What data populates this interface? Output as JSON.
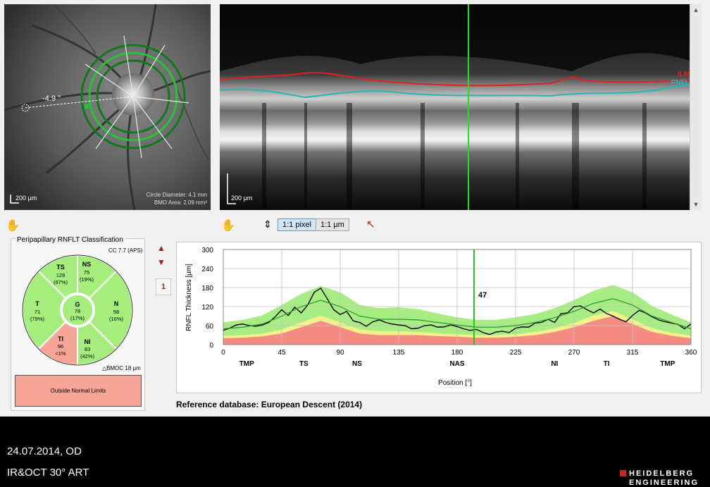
{
  "fundus": {
    "angle_label": "-4.9 °",
    "scale_label": "200 µm",
    "circle_diameter": "Circle Diameter: 4.1 mm",
    "bmo_area": "BMO Area: 2.09 mm²"
  },
  "bscan": {
    "scale_label": "200 µm",
    "layer_ilm": "ILM",
    "layer_rnfl": "RNFL",
    "ilm_color": "#e02020",
    "rnfl_color": "#2ab5b5"
  },
  "toolbar": {
    "btn_1to1_pixel": "1:1 pixel",
    "btn_1to1_um": "1:1 µm"
  },
  "classification": {
    "title": "Peripapillary RNFLT Classification",
    "cc": "CC 7.7 (APS)",
    "bmoc": "BMOC 18 µm",
    "result": "Outside Normal Limits",
    "page_number": "1",
    "sectors": {
      "TS": {
        "name": "TS",
        "value": "128",
        "pct": "(67%)"
      },
      "NS": {
        "name": "NS",
        "value": "75",
        "pct": "(19%)"
      },
      "T": {
        "name": "T",
        "value": "71",
        "pct": "(79%)"
      },
      "G": {
        "name": "G",
        "value": "78",
        "pct": "(17%)"
      },
      "N": {
        "name": "N",
        "value": "58",
        "pct": "(16%)"
      },
      "TI": {
        "name": "TI",
        "value": "96",
        "pct": "<1%"
      },
      "NI": {
        "name": "NI",
        "value": "83",
        "pct": "(42%)"
      }
    },
    "normal_color": "#a5ee7e",
    "outside_color": "#f6a596"
  },
  "chart_data": {
    "type": "line",
    "ylabel": "RNFL Thickness [µm]",
    "xlabel": "Position [°]",
    "xlim": [
      0,
      360
    ],
    "ylim": [
      0,
      300
    ],
    "xticks": [
      0,
      45,
      90,
      135,
      180,
      225,
      270,
      315,
      360
    ],
    "yticks": [
      0,
      60,
      120,
      180,
      240,
      300
    ],
    "sector_labels": [
      {
        "label": "TMP",
        "x": 18
      },
      {
        "label": "TS",
        "x": 62
      },
      {
        "label": "NS",
        "x": 103
      },
      {
        "label": "NAS",
        "x": 180
      },
      {
        "label": "NI",
        "x": 255
      },
      {
        "label": "TI",
        "x": 295
      },
      {
        "label": "TMP",
        "x": 342
      }
    ],
    "cursor": {
      "x": 193,
      "label": "47"
    },
    "grid": true,
    "series": [
      {
        "role": "measured",
        "color": "#000000",
        "x": [
          0,
          5,
          10,
          15,
          20,
          25,
          30,
          35,
          40,
          45,
          50,
          55,
          60,
          65,
          70,
          75,
          80,
          85,
          90,
          95,
          100,
          105,
          110,
          115,
          120,
          125,
          130,
          135,
          140,
          145,
          150,
          155,
          160,
          165,
          170,
          175,
          180,
          185,
          190,
          195,
          200,
          205,
          210,
          215,
          220,
          225,
          230,
          235,
          240,
          245,
          250,
          255,
          260,
          265,
          270,
          275,
          280,
          285,
          290,
          295,
          300,
          305,
          310,
          315,
          320,
          325,
          330,
          335,
          340,
          345,
          350,
          355,
          360
        ],
        "y": [
          45,
          52,
          62,
          65,
          60,
          58,
          62,
          70,
          88,
          110,
          92,
          118,
          100,
          125,
          165,
          178,
          145,
          110,
          95,
          105,
          75,
          70,
          58,
          72,
          78,
          70,
          65,
          62,
          60,
          50,
          52,
          60,
          62,
          55,
          56,
          62,
          57,
          50,
          45,
          48,
          38,
          32,
          40,
          42,
          38,
          52,
          56,
          55,
          68,
          70,
          80,
          70,
          98,
          100,
          120,
          122,
          110,
          100,
          112,
          98,
          90,
          80,
          72,
          92,
          108,
          100,
          88,
          78,
          72,
          68,
          64,
          50,
          65
        ]
      },
      {
        "role": "mean",
        "color": "#2a9a2a",
        "x": [
          0,
          15,
          30,
          45,
          60,
          75,
          90,
          105,
          120,
          135,
          150,
          165,
          180,
          195,
          210,
          225,
          240,
          255,
          270,
          285,
          300,
          315,
          330,
          345,
          360
        ],
        "y": [
          50,
          55,
          65,
          90,
          120,
          140,
          120,
          90,
          80,
          80,
          78,
          70,
          62,
          55,
          55,
          60,
          70,
          85,
          105,
          130,
          145,
          125,
          90,
          70,
          50
        ]
      }
    ],
    "bands": [
      {
        "role": "outside_normal",
        "color": "#f58c84",
        "x": [
          0,
          15,
          30,
          45,
          60,
          75,
          90,
          105,
          120,
          135,
          150,
          165,
          180,
          195,
          210,
          225,
          240,
          255,
          270,
          285,
          300,
          315,
          330,
          345,
          360
        ],
        "y": [
          20,
          22,
          26,
          35,
          55,
          75,
          55,
          35,
          30,
          30,
          30,
          27,
          25,
          22,
          22,
          25,
          30,
          40,
          55,
          75,
          90,
          65,
          40,
          28,
          20
        ]
      },
      {
        "role": "borderline",
        "color": "#f4f08a",
        "x": [
          0,
          15,
          30,
          45,
          60,
          75,
          90,
          105,
          120,
          135,
          150,
          165,
          180,
          195,
          210,
          225,
          240,
          255,
          270,
          285,
          300,
          315,
          330,
          345,
          360
        ],
        "y": [
          28,
          30,
          35,
          48,
          70,
          92,
          70,
          48,
          42,
          42,
          40,
          36,
          33,
          30,
          30,
          33,
          40,
          52,
          68,
          92,
          106,
          80,
          52,
          38,
          28
        ]
      },
      {
        "role": "normal",
        "color": "#a8ec84",
        "x": [
          0,
          15,
          30,
          45,
          60,
          75,
          90,
          105,
          120,
          135,
          150,
          165,
          180,
          195,
          210,
          225,
          240,
          255,
          270,
          285,
          300,
          315,
          330,
          345,
          360
        ],
        "y": [
          70,
          78,
          92,
          125,
          160,
          185,
          165,
          125,
          115,
          118,
          112,
          98,
          86,
          78,
          78,
          86,
          96,
          115,
          140,
          170,
          188,
          165,
          122,
          95,
          70
        ]
      }
    ]
  },
  "reference_db": "Reference database: European Descent (2014)",
  "footer": {
    "date": "24.07.2014, OD",
    "mode": "IR&OCT 30° ART",
    "brand_top": "HEIDELBERG",
    "brand_bottom": "ENGINEERING"
  }
}
